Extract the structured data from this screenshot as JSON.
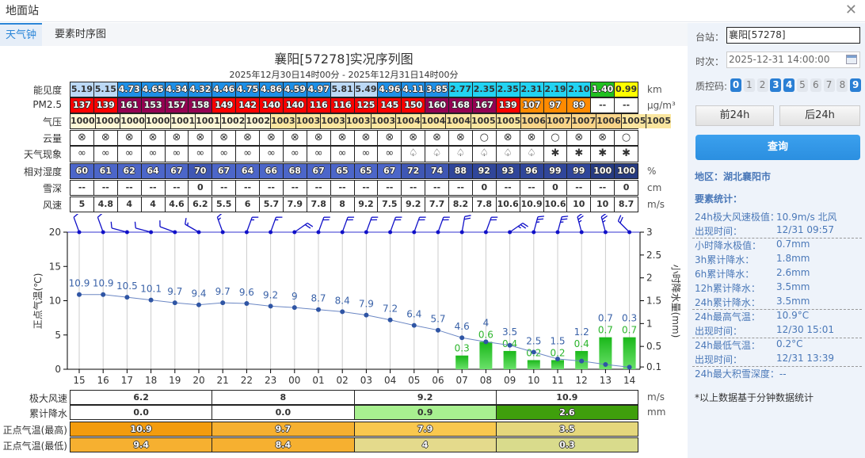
{
  "window": {
    "title": "地面站",
    "close_icon": "close-icon"
  },
  "tabs": [
    {
      "label": "天气钟",
      "active": true
    },
    {
      "label": "要素时序图",
      "active": false
    }
  ],
  "chart_title": "襄阳[57278]实况序列图",
  "chart_subtitle": "2025年12月30日14时00分 - 2025年12月31日14时00分",
  "hours": [
    "15",
    "16",
    "17",
    "18",
    "19",
    "20",
    "21",
    "22",
    "23",
    "00",
    "01",
    "02",
    "03",
    "04",
    "05",
    "06",
    "07",
    "08",
    "09",
    "10",
    "11",
    "12",
    "13",
    "14"
  ],
  "table": {
    "visibility": {
      "label": "能见度",
      "unit": "km",
      "values": [
        "5.19",
        "5.15",
        "4.73",
        "4.65",
        "4.34",
        "4.32",
        "4.46",
        "4.75",
        "4.86",
        "4.59",
        "4.97",
        "5.81",
        "5.49",
        "4.96",
        "4.11",
        "3.85",
        "2.77",
        "2.35",
        "2.35",
        "2.31",
        "2.19",
        "2.10",
        "1.40",
        "0.99"
      ]
    },
    "pm25": {
      "label": "PM2.5",
      "unit": "μg/m³",
      "values": [
        "137",
        "139",
        "161",
        "153",
        "157",
        "158",
        "149",
        "142",
        "140",
        "140",
        "116",
        "116",
        "125",
        "145",
        "150",
        "160",
        "168",
        "167",
        "139",
        "107",
        "97",
        "89",
        "--",
        "--"
      ]
    },
    "pressure": {
      "label": "气压",
      "unit": "hPa",
      "values": [
        "1000",
        "1000",
        "1000",
        "1000",
        "1001",
        "1001",
        "1002",
        "1002",
        "1003",
        "1003",
        "1003",
        "1003",
        "1003",
        "1004",
        "1004",
        "1004",
        "1005",
        "1005",
        "1006",
        "1007",
        "1007",
        "1006",
        "1005",
        "1005"
      ]
    },
    "cloud": {
      "label": "云量",
      "unit": "",
      "values": [
        "⊗",
        "⊗",
        "⊗",
        "⊗",
        "⊗",
        "⊗",
        "⊗",
        "⊗",
        "⊗",
        "⊗",
        "⊗",
        "⊗",
        "⊗",
        "⊗",
        "⊗",
        "⊗",
        "⊗",
        "○",
        "⊗",
        "⊗",
        "○",
        "⊗",
        "⊗",
        "○"
      ]
    },
    "weather": {
      "label": "天气现象",
      "unit": "",
      "values": [
        "∞",
        "∞",
        "∞",
        "∞",
        "∞",
        "∞",
        "∞",
        "∞",
        "∞",
        "∞",
        "∞",
        "∞",
        "∞",
        "∞",
        "♤",
        "♤",
        "♤",
        "♤",
        "♤",
        "♤",
        "✱",
        "✱",
        "✱",
        "✱"
      ]
    },
    "humidity": {
      "label": "相对湿度",
      "unit": "%",
      "values": [
        "60",
        "61",
        "62",
        "64",
        "67",
        "70",
        "67",
        "64",
        "66",
        "68",
        "67",
        "65",
        "65",
        "67",
        "72",
        "74",
        "88",
        "92",
        "93",
        "96",
        "99",
        "99",
        "100",
        "100"
      ]
    },
    "snow": {
      "label": "雪深",
      "unit": "cm",
      "values": [
        "--",
        "--",
        "--",
        "--",
        "--",
        "0",
        "--",
        "--",
        "--",
        "--",
        "--",
        "--",
        "--",
        "--",
        "--",
        "--",
        "--",
        "0",
        "--",
        "--",
        "0",
        "--",
        "--",
        "0"
      ]
    },
    "wind": {
      "label": "风速",
      "unit": "m/s",
      "values": [
        "5",
        "4.8",
        "4",
        "4",
        "4.6",
        "6.2",
        "5.5",
        "6",
        "5.7",
        "7.9",
        "7.8",
        "8",
        "9.2",
        "7.5",
        "9.2",
        "7.7",
        "8.2",
        "7.8",
        "10.6",
        "10.9",
        "10.6",
        "10",
        "10",
        "8.7"
      ]
    }
  },
  "chart_data": {
    "type": "line+bar",
    "ylabel_left": "正点气温(℃)",
    "ylabel_right": "小时降水量(mm)",
    "ylim_left": [
      0,
      20
    ],
    "yticks_left": [
      "0",
      "5",
      "10",
      "15",
      "20"
    ],
    "yticks_right": [
      "0.1",
      "0.5",
      "1",
      "1.5",
      "2",
      "2.5",
      "3"
    ],
    "ylim_right": [
      0,
      3
    ],
    "temperature": [
      10.9,
      10.9,
      10.5,
      10.1,
      9.7,
      9.4,
      9.7,
      9.6,
      9.2,
      9,
      8.7,
      8.4,
      7.9,
      7.2,
      6.4,
      5.7,
      4.6,
      4,
      3.5,
      2.5,
      1.5,
      1.2,
      0.7,
      0.3
    ],
    "precipitation": [
      0,
      0,
      0,
      0,
      0,
      0,
      0,
      0,
      0,
      0,
      0,
      0,
      0,
      0,
      0,
      0,
      0.3,
      0.6,
      0.4,
      0.2,
      0.2,
      0.4,
      0.7,
      0.7
    ],
    "wind_direction_deg": [
      340,
      340,
      285,
      285,
      290,
      300,
      340,
      20,
      20,
      55,
      20,
      20,
      20,
      20,
      20,
      20,
      10,
      20,
      55,
      15,
      15,
      345,
      345,
      315
    ],
    "colors": {
      "temperature": "#2f55a4",
      "precipitation": "#2cbf2c",
      "wind_barb": "#1010c8"
    }
  },
  "summary": {
    "wind": {
      "label": "极大风速",
      "unit": "m/s",
      "values": [
        "6.2",
        "8",
        "9.2",
        "10.9"
      ]
    },
    "precip": {
      "label": "累计降水",
      "unit": "mm",
      "values": [
        "0.0",
        "0.0",
        "0.9",
        "2.6"
      ]
    },
    "tmax": {
      "label": "正点气温(最高)",
      "values": [
        "10.9",
        "9.7",
        "7.9",
        "3.5"
      ]
    },
    "tmin": {
      "label": "正点气温(最低)",
      "values": [
        "9.4",
        "8.4",
        "4",
        "0.3"
      ]
    }
  },
  "panel": {
    "station_label": "台站：",
    "station_value": "襄阳[57278]",
    "time_label": "时次：",
    "time_value": "2025-12-31 14:00:00",
    "qc_label": "质控码:",
    "qc_codes": [
      {
        "c": "0",
        "on": true
      },
      {
        "c": "1",
        "on": false
      },
      {
        "c": "2",
        "on": false
      },
      {
        "c": "3",
        "on": true
      },
      {
        "c": "4",
        "on": true
      },
      {
        "c": "5",
        "on": false
      },
      {
        "c": "6",
        "on": false
      },
      {
        "c": "7",
        "on": false
      },
      {
        "c": "8",
        "on": false
      },
      {
        "c": "9",
        "on": true
      }
    ],
    "prev_label": "前24h",
    "next_label": "后24h",
    "query_label": "查询",
    "region": "地区：湖北襄阳市",
    "stats_title": "要素统计：",
    "stats": [
      {
        "k": "24h极大风速极值：",
        "v": "10.9m/s 北风"
      },
      {
        "k": "出现时间：",
        "v": "12/31 09:57",
        "sep": true
      },
      {
        "k": "小时降水极值：",
        "v": "0.7mm"
      },
      {
        "k": "3h累计降水：",
        "v": "1.8mm"
      },
      {
        "k": "6h累计降水：",
        "v": "2.6mm"
      },
      {
        "k": "12h累计降水：",
        "v": "3.5mm"
      },
      {
        "k": "24h累计降水：",
        "v": "3.5mm",
        "sep": true
      },
      {
        "k": "24h最高气温：",
        "v": "10.9°C"
      },
      {
        "k": "出现时间：",
        "v": "12/30 15:01",
        "sep": true
      },
      {
        "k": "24h最低气温：",
        "v": "0.2°C"
      },
      {
        "k": "出现时间：",
        "v": "12/31 13:39",
        "sep": true
      },
      {
        "k": "24h最大积雪深度：--",
        "v": ""
      }
    ],
    "footnote": "*以上数据基于分钟数据统计"
  }
}
